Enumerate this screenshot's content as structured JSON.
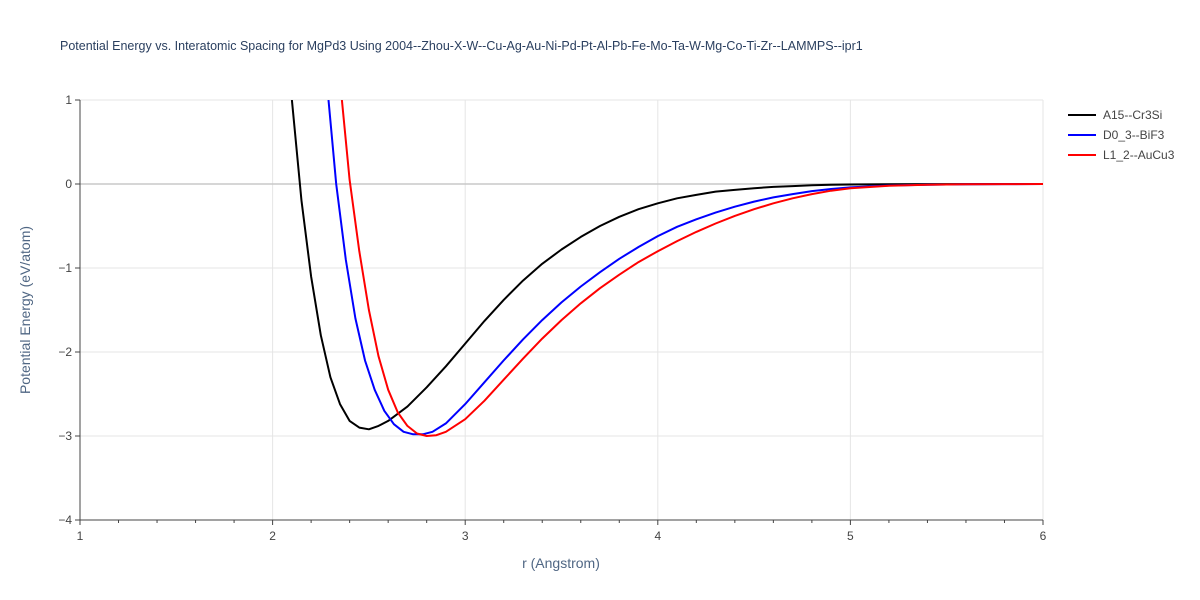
{
  "chart_data": {
    "type": "line",
    "title": "Potential Energy vs. Interatomic Spacing for MgPd3 Using 2004--Zhou-X-W--Cu-Ag-Au-Ni-Pd-Pt-Al-Pb-Fe-Mo-Ta-W-Mg-Co-Ti-Zr--LAMMPS--ipr1",
    "xlabel": "r (Angstrom)",
    "ylabel": "Potential Energy (eV/atom)",
    "xlim": [
      1,
      6
    ],
    "ylim": [
      -4,
      1
    ],
    "x_ticks": [
      1,
      2,
      3,
      4,
      5,
      6
    ],
    "y_ticks": [
      1,
      0,
      -1,
      -2,
      -3,
      -4
    ],
    "y_tick_labels": [
      "1",
      "0",
      "−1",
      "−2",
      "−3",
      "−4"
    ],
    "grid": true,
    "legend_position": "top-right",
    "series": [
      {
        "name": "A15--Cr3Si",
        "color": "#000000",
        "x": [
          2.1,
          2.15,
          2.2,
          2.25,
          2.3,
          2.35,
          2.4,
          2.45,
          2.5,
          2.55,
          2.6,
          2.7,
          2.8,
          2.9,
          3.0,
          3.1,
          3.2,
          3.3,
          3.4,
          3.5,
          3.6,
          3.7,
          3.8,
          3.9,
          4.0,
          4.1,
          4.2,
          4.3,
          4.4,
          4.5,
          4.6,
          4.7,
          4.8,
          4.9,
          5.0,
          5.2,
          5.4,
          5.6,
          5.8,
          6.0
        ],
        "y": [
          1.0,
          -0.2,
          -1.1,
          -1.8,
          -2.3,
          -2.62,
          -2.82,
          -2.9,
          -2.92,
          -2.88,
          -2.82,
          -2.65,
          -2.42,
          -2.17,
          -1.9,
          -1.63,
          -1.38,
          -1.15,
          -0.95,
          -0.78,
          -0.63,
          -0.5,
          -0.39,
          -0.3,
          -0.23,
          -0.17,
          -0.13,
          -0.09,
          -0.07,
          -0.05,
          -0.035,
          -0.025,
          -0.016,
          -0.01,
          -0.006,
          -0.003,
          -0.0015,
          -0.0007,
          -0.0003,
          0.0
        ]
      },
      {
        "name": "D0_3--BiF3",
        "color": "#0000ff",
        "x": [
          2.29,
          2.33,
          2.38,
          2.43,
          2.48,
          2.53,
          2.58,
          2.63,
          2.68,
          2.73,
          2.78,
          2.83,
          2.9,
          3.0,
          3.1,
          3.2,
          3.3,
          3.4,
          3.5,
          3.6,
          3.7,
          3.8,
          3.9,
          4.0,
          4.1,
          4.2,
          4.3,
          4.4,
          4.5,
          4.6,
          4.7,
          4.8,
          4.9,
          5.0,
          5.2,
          5.4,
          5.6,
          5.8,
          6.0
        ],
        "y": [
          1.0,
          0.0,
          -0.9,
          -1.6,
          -2.1,
          -2.45,
          -2.7,
          -2.86,
          -2.95,
          -2.98,
          -2.98,
          -2.95,
          -2.85,
          -2.62,
          -2.36,
          -2.1,
          -1.85,
          -1.62,
          -1.41,
          -1.22,
          -1.05,
          -0.89,
          -0.75,
          -0.62,
          -0.51,
          -0.42,
          -0.34,
          -0.27,
          -0.21,
          -0.16,
          -0.12,
          -0.085,
          -0.06,
          -0.04,
          -0.018,
          -0.008,
          -0.003,
          -0.001,
          0.0
        ]
      },
      {
        "name": "L1_2--AuCu3",
        "color": "#ff0000",
        "x": [
          2.36,
          2.4,
          2.45,
          2.5,
          2.55,
          2.6,
          2.65,
          2.7,
          2.75,
          2.8,
          2.85,
          2.9,
          3.0,
          3.1,
          3.2,
          3.3,
          3.4,
          3.5,
          3.6,
          3.7,
          3.8,
          3.9,
          4.0,
          4.1,
          4.2,
          4.3,
          4.4,
          4.5,
          4.6,
          4.7,
          4.8,
          4.9,
          5.0,
          5.2,
          5.4,
          5.6,
          5.8,
          6.0
        ],
        "y": [
          1.0,
          0.05,
          -0.8,
          -1.5,
          -2.05,
          -2.45,
          -2.72,
          -2.88,
          -2.97,
          -3.0,
          -2.99,
          -2.95,
          -2.8,
          -2.58,
          -2.33,
          -2.08,
          -1.84,
          -1.62,
          -1.42,
          -1.24,
          -1.08,
          -0.93,
          -0.8,
          -0.68,
          -0.57,
          -0.47,
          -0.38,
          -0.3,
          -0.23,
          -0.17,
          -0.12,
          -0.08,
          -0.05,
          -0.02,
          -0.008,
          -0.003,
          -0.001,
          0.0
        ]
      }
    ]
  }
}
